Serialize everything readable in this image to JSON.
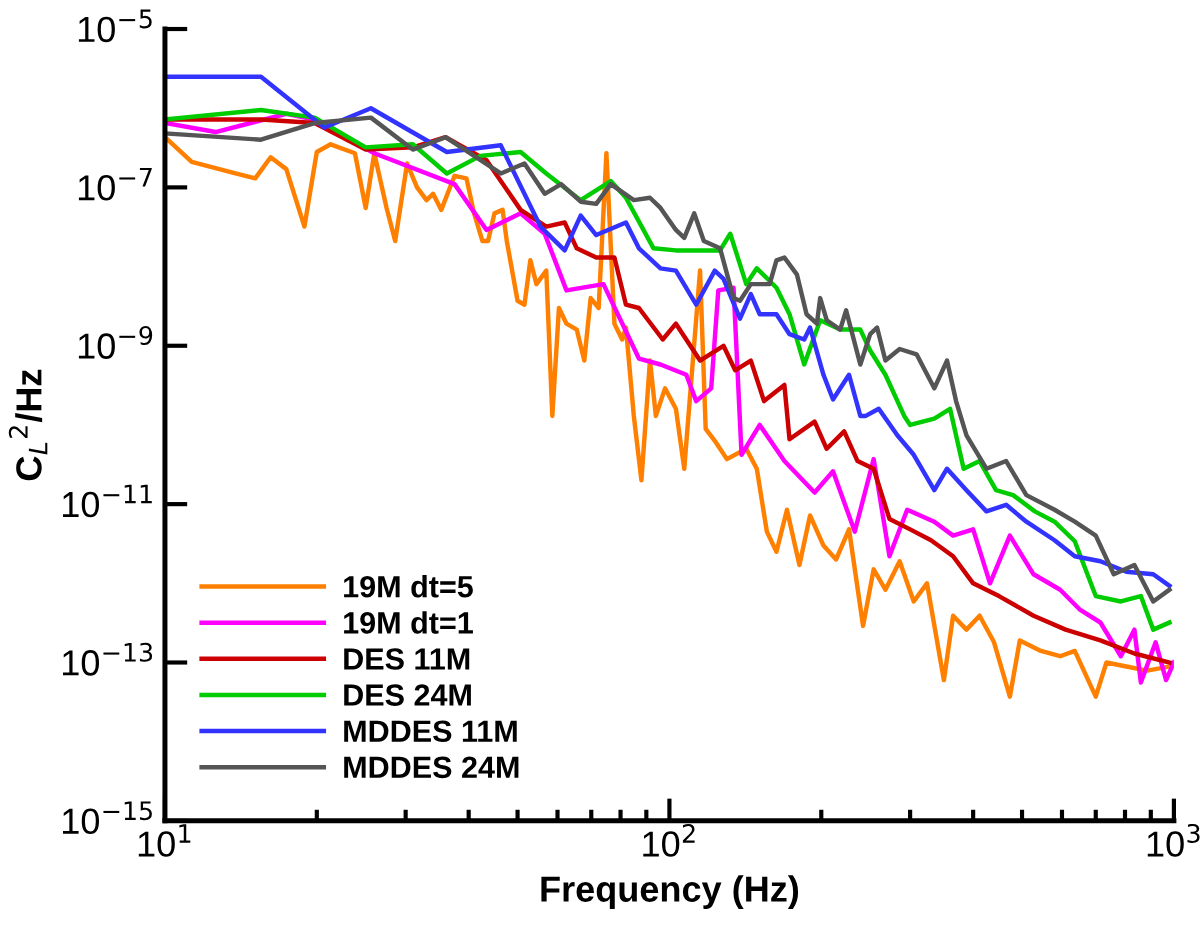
{
  "chart_data": {
    "type": "line",
    "xlabel": "Frequency (Hz)",
    "ylabel": "C$_{L}$$^{2}$/Hz",
    "log": "xy",
    "grid": false,
    "legend": "bottom left",
    "line_style": "solid",
    "marker": "none",
    "xlim": [
      10,
      1000
    ],
    "ylim": [
      1e-15,
      1e-05
    ],
    "xticks": [
      {
        "value": 10,
        "label": "10$^{1}$"
      },
      {
        "value": 100,
        "label": "10$^{2}$"
      },
      {
        "value": 1000,
        "label": "10$^{3}$"
      }
    ],
    "yticks": [
      {
        "value": 1e-15,
        "label": "10$^{−15}$"
      },
      {
        "value": 1e-13,
        "label": "10$^{−13}$"
      },
      {
        "value": 1e-11,
        "label": "10$^{−11}$"
      },
      {
        "value": 1e-09,
        "label": "10$^{−9}$"
      },
      {
        "value": 1e-07,
        "label": "10$^{−7}$"
      },
      {
        "value": 1e-05,
        "label": "10$^{−5}$"
      }
    ],
    "series": [
      {
        "name": "19M dt=5",
        "color": "#ff8000",
        "x": [
          10,
          11.3,
          13.8,
          15.1,
          16.2,
          17.4,
          18.9,
          20,
          21.3,
          23.8,
          25,
          26,
          27.5,
          28.6,
          30.2,
          31.6,
          33,
          34,
          35.3,
          37.5,
          39.6,
          41,
          42.6,
          43.7,
          45,
          46.7,
          47.6,
          50,
          51.6,
          53,
          54.5,
          57,
          58.6,
          60.4,
          62.5,
          65.5,
          67.8,
          69.8,
          72.4,
          75,
          77.8,
          80.6,
          82,
          85,
          88,
          91.5,
          94,
          98,
          103,
          107,
          115,
          118,
          123,
          130,
          142,
          149,
          156,
          163,
          171,
          181,
          190,
          202,
          214,
          227,
          242,
          254,
          268,
          286,
          305,
          324,
          350,
          365,
          388,
          412,
          440,
          473,
          495,
          545,
          595,
          636,
          700,
          735,
          805,
          885,
          980
        ],
        "values": [
          4.3e-07,
          2.1e-07,
          1.5e-07,
          1.3e-07,
          2.4e-07,
          1.7e-07,
          3.2e-08,
          2.8e-07,
          3.5e-07,
          2.7e-07,
          5.5e-08,
          2.7e-07,
          5.5e-08,
          2.1e-08,
          2e-07,
          1e-07,
          6.9e-08,
          8.3e-08,
          5.2e-08,
          1.4e-07,
          1.3e-07,
          4.7e-08,
          2.1e-08,
          2.1e-08,
          4.7e-08,
          5.2e-08,
          2.1e-08,
          3.7e-09,
          3.3e-09,
          1.2e-08,
          6e-09,
          8.9e-09,
          1.3e-10,
          3e-09,
          1.9e-09,
          1.6e-09,
          6.5e-10,
          4e-09,
          3e-09,
          2.7e-07,
          1.9e-09,
          1.2e-09,
          1.7e-09,
          1.3e-10,
          2e-11,
          6.5e-10,
          1.3e-10,
          2.9e-10,
          1.6e-10,
          2.8e-11,
          8.9e-09,
          8.9e-11,
          6.3e-11,
          3.7e-11,
          5e-11,
          2.8e-11,
          4.5e-12,
          2.5e-12,
          8.5e-12,
          1.7e-12,
          7.2e-12,
          3e-12,
          2e-12,
          4.8e-12,
          2.9e-13,
          1.5e-12,
          8.3e-13,
          1.9e-12,
          5.9e-13,
          1e-12,
          6e-14,
          3.9e-13,
          2.6e-13,
          3.9e-13,
          1.8e-13,
          3.7e-14,
          1.9e-13,
          1.4e-13,
          1.2e-13,
          1.4e-13,
          3.7e-14,
          1e-13,
          8.9e-14,
          7.9e-14,
          8.9e-14
        ]
      },
      {
        "name": "19M dt=1",
        "color": "#ff00ff",
        "x": [
          10,
          12.6,
          17.4,
          19.8,
          26,
          37.5,
          43.4,
          50.7,
          56.6,
          62.5,
          74,
          87,
          96,
          108,
          113,
          121,
          125,
          134,
          139,
          151,
          169,
          194,
          211,
          233,
          254,
          273,
          296,
          335,
          365,
          400,
          432,
          473,
          527,
          595,
          650,
          715,
          785,
          835,
          860,
          920,
          965,
          1000
        ],
        "values": [
          6.5e-07,
          5e-07,
          8.5e-07,
          7.2e-07,
          2.7e-07,
          1.1e-07,
          2.9e-08,
          4.7e-08,
          2.6e-08,
          5e-09,
          6e-09,
          6.9e-10,
          5.8e-10,
          4.3e-10,
          2e-10,
          2.9e-10,
          5e-09,
          5.4e-09,
          4.2e-11,
          1e-10,
          3.5e-11,
          1.4e-11,
          2.6e-11,
          4.5e-12,
          3.7e-11,
          2.2e-12,
          8.5e-12,
          6e-12,
          4e-12,
          4.8e-12,
          1e-12,
          4e-12,
          1.3e-12,
          8.3e-13,
          4.7e-13,
          3.2e-13,
          1.2e-13,
          2.6e-13,
          5.6e-14,
          1.8e-13,
          6e-14,
          1e-13
        ]
      },
      {
        "name": "DES 11M",
        "color": "#cc0000",
        "x": [
          10,
          15.5,
          19.8,
          25,
          31,
          36,
          43.4,
          50.7,
          57,
          62,
          65.5,
          71.6,
          77.8,
          82,
          87,
          97,
          103,
          115,
          128,
          135,
          145,
          154,
          169,
          173,
          194,
          205,
          222,
          236,
          254,
          273,
          300,
          330,
          365,
          400,
          450,
          527,
          610,
          715,
          835,
          980
        ],
        "values": [
          7.2e-07,
          7.2e-07,
          6.5e-07,
          3e-07,
          3.2e-07,
          4.3e-07,
          2.2e-07,
          5.2e-08,
          3.2e-08,
          3.6e-08,
          1.7e-08,
          1.3e-08,
          1.3e-08,
          3.3e-09,
          3e-09,
          1.2e-09,
          1.9e-09,
          6.5e-10,
          1e-09,
          4.9e-10,
          6.5e-10,
          2e-10,
          3.2e-10,
          6.6e-11,
          1.1e-10,
          5e-11,
          8.3e-11,
          3.5e-11,
          2.8e-11,
          6.5e-12,
          4.8e-12,
          3.5e-12,
          2.2e-12,
          1e-12,
          6.9e-13,
          3.9e-13,
          2.6e-13,
          1.9e-13,
          1.3e-13,
          1e-13
        ]
      },
      {
        "name": "DES 24M",
        "color": "#00cc00",
        "x": [
          10,
          15.5,
          19.8,
          25,
          31,
          36.2,
          42.2,
          50.7,
          57,
          66.7,
          76.5,
          82,
          93,
          103,
          115,
          126,
          132,
          142,
          149,
          163,
          173,
          185,
          199,
          218,
          239,
          250,
          268,
          292,
          300,
          335,
          360,
          383,
          412,
          444,
          480,
          530,
          580,
          636,
          700,
          785,
          860,
          910,
          980
        ],
        "values": [
          7.2e-07,
          9.5e-07,
          7.6e-07,
          3.2e-07,
          3.5e-07,
          1.5e-07,
          2.5e-07,
          2.8e-07,
          1.5e-07,
          6.9e-08,
          1.2e-07,
          7.4e-08,
          1.7e-08,
          1.6e-08,
          1.6e-08,
          1.6e-08,
          2.6e-08,
          6e-09,
          9.5e-09,
          5.4e-09,
          2.5e-09,
          5.8e-10,
          2.1e-09,
          1.6e-09,
          1.6e-09,
          8.7e-10,
          4.3e-10,
          1.3e-10,
          1e-10,
          1.2e-10,
          1.6e-10,
          2.8e-11,
          3.5e-11,
          1.5e-11,
          1.3e-11,
          8.1e-12,
          6e-12,
          3.4e-12,
          6.9e-13,
          5.9e-13,
          6.9e-13,
          2.6e-13,
          3.2e-13
        ]
      },
      {
        "name": "MDDES 11M",
        "color": "#3333ff",
        "x": [
          10,
          15.5,
          20.7,
          25.6,
          36.2,
          46.3,
          55.5,
          62,
          66.7,
          71.6,
          82,
          87,
          96,
          103,
          113,
          123,
          128,
          138,
          145,
          151,
          163,
          173,
          185,
          190,
          202,
          211,
          227,
          239,
          245,
          260,
          283,
          305,
          335,
          355,
          388,
          425,
          465,
          510,
          580,
          636,
          715,
          805,
          910,
          980
        ],
        "values": [
          2.5e-06,
          2.5e-06,
          5.7e-07,
          1e-06,
          2.8e-07,
          3.4e-07,
          3.2e-08,
          1.6e-08,
          4.4e-08,
          2.5e-08,
          3.6e-08,
          1.7e-08,
          9.5e-09,
          8.9e-09,
          3.3e-09,
          8.9e-09,
          7e-09,
          2.2e-09,
          4.5e-09,
          2.5e-09,
          2.5e-09,
          1.4e-09,
          1.2e-09,
          1.7e-09,
          4.3e-10,
          2.1e-10,
          4.3e-10,
          1.3e-10,
          1.3e-10,
          1.6e-10,
          7.4e-11,
          4.2e-11,
          1.5e-11,
          2.8e-11,
          1.5e-11,
          8.1e-12,
          9.8e-12,
          6e-12,
          3.5e-12,
          2.2e-12,
          1.9e-12,
          1.4e-12,
          1.3e-12,
          9.3e-13
        ]
      },
      {
        "name": "MDDES 24M",
        "color": "#555555",
        "x": [
          10,
          15.5,
          19.8,
          25.6,
          31,
          36,
          46.3,
          51.6,
          56.6,
          61,
          66.7,
          71.6,
          76.5,
          85,
          91.5,
          96,
          103,
          107,
          112,
          117,
          126,
          134,
          138,
          145,
          158,
          163,
          169,
          179,
          187,
          196,
          199,
          205,
          218,
          224,
          239,
          250,
          258,
          268,
          286,
          309,
          320,
          335,
          355,
          370,
          388,
          425,
          465,
          510,
          580,
          636,
          700,
          760,
          835,
          910,
          980
        ],
        "values": [
          4.8e-07,
          4e-07,
          6.5e-07,
          7.6e-07,
          3e-07,
          4.3e-07,
          1.5e-07,
          2e-07,
          8.3e-08,
          1.1e-07,
          6.6e-08,
          6.2e-08,
          1.1e-07,
          6.9e-08,
          7.4e-08,
          5.5e-08,
          2.9e-08,
          2.3e-08,
          4.7e-08,
          2.1e-08,
          1.7e-08,
          4e-09,
          3.7e-09,
          6e-09,
          6e-09,
          1.2e-08,
          1.3e-08,
          7.9e-09,
          2.5e-09,
          1.9e-09,
          4e-09,
          2.1e-09,
          1.6e-09,
          2.8e-09,
          5.8e-10,
          1.4e-09,
          1.7e-09,
          6.5e-10,
          9.1e-10,
          7.8e-10,
          5.1e-10,
          2.9e-10,
          6.5e-10,
          2e-10,
          7.4e-11,
          2.8e-11,
          3.5e-11,
          1.3e-11,
          8.5e-12,
          6e-12,
          4e-12,
          1.3e-12,
          1.7e-12,
          5.9e-13,
          8.3e-13
        ]
      }
    ]
  }
}
